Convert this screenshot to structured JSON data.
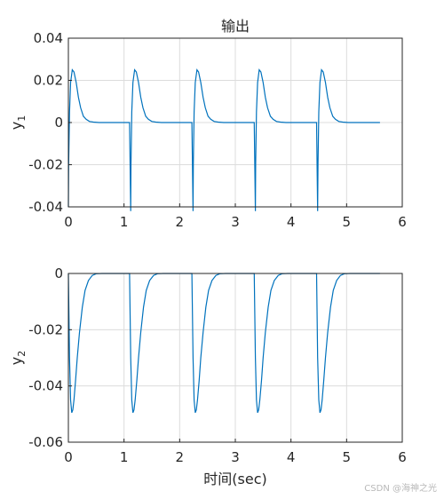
{
  "title": "输出",
  "xlabel": "时间(sec)",
  "watermark": "CSDN @海神之光",
  "line_color": "#0072BD",
  "chart_data": [
    {
      "type": "line",
      "title": "输出",
      "ylabel_main": "y",
      "ylabel_sub": "1",
      "xlim": [
        0,
        6
      ],
      "ylim": [
        -0.04,
        0.04
      ],
      "xticks": [
        0,
        1,
        2,
        3,
        4,
        5,
        6
      ],
      "xtick_labels": [
        "0",
        "1",
        "2",
        "3",
        "4",
        "5",
        "6"
      ],
      "yticks": [
        0.04,
        0.02,
        0,
        -0.02,
        -0.04
      ],
      "ytick_labels": [
        "0.04",
        "0.02",
        "0",
        "-0.02",
        "-0.04"
      ],
      "grid": true,
      "series": [
        {
          "x": [
            0,
            0.005,
            0.02,
            0.04,
            0.07,
            0.1,
            0.14,
            0.18,
            0.22,
            0.27,
            0.32,
            0.38,
            0.45,
            0.55,
            0.7,
            1.1,
            1.12,
            1.125,
            1.14,
            1.16,
            1.19,
            1.22,
            1.26,
            1.3,
            1.34,
            1.39,
            1.44,
            1.5,
            1.57,
            1.67,
            1.8,
            2.22,
            2.24,
            2.245,
            2.26,
            2.28,
            2.31,
            2.34,
            2.38,
            2.42,
            2.46,
            2.51,
            2.56,
            2.62,
            2.69,
            2.79,
            2.92,
            3.34,
            3.36,
            3.365,
            3.38,
            3.4,
            3.43,
            3.46,
            3.5,
            3.54,
            3.58,
            3.63,
            3.68,
            3.74,
            3.81,
            3.91,
            4.04,
            4.46,
            4.48,
            4.485,
            4.5,
            4.52,
            4.55,
            4.58,
            4.62,
            4.66,
            4.7,
            4.75,
            4.8,
            4.86,
            4.93,
            5.03,
            5.2,
            5.6
          ],
          "y": [
            -0.04,
            -0.02,
            0.005,
            0.019,
            0.025,
            0.024,
            0.019,
            0.012,
            0.007,
            0.003,
            0.0015,
            0.0005,
            0.0002,
            0,
            0,
            0,
            -0.042,
            -0.02,
            0.005,
            0.019,
            0.025,
            0.024,
            0.019,
            0.012,
            0.007,
            0.003,
            0.0015,
            0.0005,
            0.0002,
            0,
            0,
            0,
            -0.042,
            -0.02,
            0.005,
            0.019,
            0.025,
            0.024,
            0.019,
            0.012,
            0.007,
            0.003,
            0.0015,
            0.0005,
            0.0002,
            0,
            0,
            0,
            -0.042,
            -0.02,
            0.005,
            0.019,
            0.025,
            0.024,
            0.019,
            0.012,
            0.007,
            0.003,
            0.0015,
            0.0005,
            0.0002,
            0,
            0,
            0,
            -0.042,
            -0.02,
            0.005,
            0.019,
            0.025,
            0.024,
            0.019,
            0.012,
            0.007,
            0.003,
            0.0015,
            0.0005,
            0.0002,
            0,
            0,
            0
          ]
        }
      ]
    },
    {
      "type": "line",
      "title": "",
      "ylabel_main": "y",
      "ylabel_sub": "2",
      "xlim": [
        0,
        6
      ],
      "ylim": [
        -0.06,
        0
      ],
      "xticks": [
        0,
        1,
        2,
        3,
        4,
        5,
        6
      ],
      "xtick_labels": [
        "0",
        "1",
        "2",
        "3",
        "4",
        "5",
        "6"
      ],
      "yticks": [
        0,
        -0.02,
        -0.04,
        -0.06
      ],
      "ytick_labels": [
        "0",
        "-0.02",
        "-0.04",
        "-0.06"
      ],
      "grid": true,
      "series": [
        {
          "x": [
            0,
            0.02,
            0.04,
            0.06,
            0.08,
            0.1,
            0.13,
            0.16,
            0.2,
            0.25,
            0.3,
            0.36,
            0.43,
            0.5,
            0.6,
            1.1,
            1.12,
            1.14,
            1.16,
            1.18,
            1.2,
            1.23,
            1.26,
            1.3,
            1.35,
            1.4,
            1.46,
            1.53,
            1.6,
            1.7,
            2.22,
            2.24,
            2.26,
            2.28,
            2.3,
            2.32,
            2.35,
            2.38,
            2.42,
            2.47,
            2.52,
            2.58,
            2.65,
            2.72,
            2.82,
            3.34,
            3.36,
            3.38,
            3.4,
            3.42,
            3.44,
            3.47,
            3.5,
            3.54,
            3.59,
            3.64,
            3.7,
            3.77,
            3.84,
            3.94,
            4.46,
            4.48,
            4.5,
            4.52,
            4.54,
            4.56,
            4.59,
            4.62,
            4.66,
            4.71,
            4.76,
            4.82,
            4.89,
            4.96,
            5.06,
            5.6
          ],
          "y": [
            0,
            -0.03,
            -0.045,
            -0.0495,
            -0.0485,
            -0.045,
            -0.038,
            -0.03,
            -0.021,
            -0.012,
            -0.006,
            -0.0025,
            -0.0007,
            -0.0001,
            0,
            0,
            -0.03,
            -0.045,
            -0.0495,
            -0.0485,
            -0.045,
            -0.038,
            -0.03,
            -0.021,
            -0.012,
            -0.006,
            -0.0025,
            -0.0007,
            -0.0001,
            0,
            0,
            -0.03,
            -0.045,
            -0.0495,
            -0.0485,
            -0.045,
            -0.038,
            -0.03,
            -0.021,
            -0.012,
            -0.006,
            -0.0025,
            -0.0007,
            -0.0001,
            0,
            0,
            -0.03,
            -0.045,
            -0.0495,
            -0.0485,
            -0.045,
            -0.038,
            -0.03,
            -0.021,
            -0.012,
            -0.006,
            -0.0025,
            -0.0007,
            -0.0001,
            0,
            0,
            -0.03,
            -0.045,
            -0.0495,
            -0.0485,
            -0.045,
            -0.038,
            -0.03,
            -0.021,
            -0.012,
            -0.006,
            -0.0025,
            -0.0007,
            -0.0001,
            0,
            0
          ]
        }
      ]
    }
  ]
}
